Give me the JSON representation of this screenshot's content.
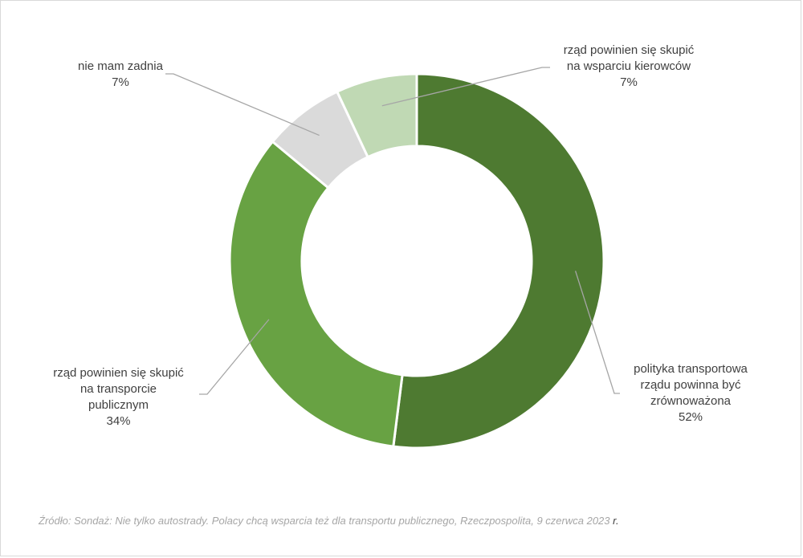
{
  "chart_data": {
    "type": "pie",
    "donut": true,
    "slices": [
      {
        "label_lines": [
          "polityka transportowa",
          "rządu powinna być",
          "zrównoważona"
        ],
        "pct_label": "52%",
        "value": 52,
        "color": "#4E7A31"
      },
      {
        "label_lines": [
          "rząd powinien się skupić",
          "na transporcie",
          "publicznym"
        ],
        "pct_label": "34%",
        "value": 34,
        "color": "#68A243"
      },
      {
        "label_lines": [
          "nie mam zadnia"
        ],
        "pct_label": "7%",
        "value": 7,
        "color": "#DADADA"
      },
      {
        "label_lines": [
          "rząd powinien się skupić",
          "na wsparciu kierowców"
        ],
        "pct_label": "7%",
        "value": 7,
        "color": "#C0D9B4"
      }
    ]
  },
  "source": {
    "text": "Źródło: Sondaż: Nie tylko autostrady. Polacy chcą wsparcia też dla transportu publicznego, Rzeczpospolita, 9 czerwca 2023 ",
    "end": "r."
  }
}
